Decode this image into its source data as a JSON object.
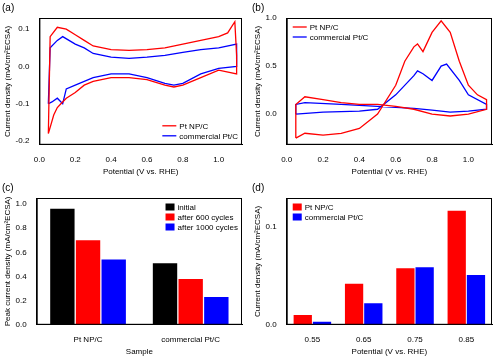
{
  "chart_data": [
    {
      "type": "line",
      "title": "(a)",
      "x_label": "Potential (V vs. RHE)",
      "y_label": "Current density (mA/cm²ECSA)",
      "xlim": [
        0,
        1.13
      ],
      "xticks": [
        {
          "value": 0,
          "label": "0.0"
        },
        0.2,
        0.4,
        0.6,
        0.8,
        {
          "value": 1,
          "label": "1.0"
        }
      ],
      "ylim": [
        -0.21,
        0.13
      ],
      "yticks": [
        -0.2,
        -0.1,
        {
          "value": 0,
          "label": "0.0"
        },
        0.1
      ],
      "grid": false,
      "legend": "lower right",
      "series": [
        {
          "name": "Pt NP/C",
          "color": "#ff0000",
          "x": [
            0.05,
            0.06,
            0.1,
            0.15,
            0.2,
            0.25,
            0.3,
            0.4,
            0.5,
            0.6,
            0.7,
            0.8,
            0.9,
            1.0,
            1.05,
            1.09,
            1.1,
            1.1,
            1.0,
            0.9,
            0.8,
            0.75,
            0.7,
            0.6,
            0.5,
            0.4,
            0.3,
            0.25,
            0.2,
            0.15,
            0.12,
            0.1,
            0.08,
            0.05
          ],
          "values": [
            -0.18,
            0.08,
            0.105,
            0.1,
            0.085,
            0.07,
            0.055,
            0.045,
            0.043,
            0.045,
            0.05,
            0.06,
            0.07,
            0.08,
            0.09,
            0.12,
            0.03,
            -0.02,
            -0.01,
            -0.03,
            -0.05,
            -0.055,
            -0.05,
            -0.035,
            -0.03,
            -0.03,
            -0.04,
            -0.05,
            -0.07,
            -0.085,
            -0.1,
            -0.11,
            -0.13,
            -0.18
          ]
        },
        {
          "name": "commercial Pt/C",
          "color": "#0000ff",
          "x": [
            0.05,
            0.06,
            0.1,
            0.13,
            0.2,
            0.25,
            0.3,
            0.4,
            0.5,
            0.6,
            0.7,
            0.8,
            0.9,
            1.0,
            1.1,
            1.1,
            1.0,
            0.9,
            0.8,
            0.75,
            0.7,
            0.6,
            0.5,
            0.4,
            0.3,
            0.2,
            0.15,
            0.13,
            0.1,
            0.07,
            0.05
          ],
          "values": [
            -0.1,
            0.05,
            0.07,
            0.08,
            0.06,
            0.05,
            0.035,
            0.025,
            0.022,
            0.025,
            0.03,
            0.038,
            0.045,
            0.05,
            0.06,
            0.0,
            -0.005,
            -0.02,
            -0.045,
            -0.05,
            -0.045,
            -0.03,
            -0.02,
            -0.02,
            -0.03,
            -0.05,
            -0.06,
            -0.1,
            -0.085,
            -0.095,
            -0.1
          ]
        }
      ]
    },
    {
      "type": "line",
      "title": "(b)",
      "x_label": "Potential (V vs. RHE)",
      "y_label": "Current density (mA/cm²ECSA)",
      "xlim": [
        0,
        1.13
      ],
      "xticks": [
        {
          "value": 0,
          "label": "0.0"
        },
        0.2,
        0.4,
        0.6,
        0.8,
        {
          "value": 1,
          "label": "1.0"
        }
      ],
      "ylim": [
        -0.32,
        1.0
      ],
      "yticks": [
        {
          "value": 0,
          "label": "0.0"
        },
        0.5,
        {
          "value": 1,
          "label": "1.0"
        }
      ],
      "grid": false,
      "legend": "upper left",
      "series": [
        {
          "name": "Pt NP/C",
          "color": "#ff0000",
          "x": [
            0.05,
            0.1,
            0.2,
            0.3,
            0.4,
            0.5,
            0.6,
            0.65,
            0.7,
            0.72,
            0.75,
            0.8,
            0.85,
            0.9,
            0.95,
            1.0,
            1.05,
            1.1,
            1.1,
            1.0,
            0.9,
            0.8,
            0.7,
            0.6,
            0.5,
            0.4,
            0.3,
            0.2,
            0.1,
            0.05,
            0.05
          ],
          "values": [
            -0.25,
            -0.2,
            -0.22,
            -0.2,
            -0.15,
            0.0,
            0.3,
            0.55,
            0.7,
            0.73,
            0.65,
            0.85,
            0.97,
            0.85,
            0.55,
            0.3,
            0.2,
            0.15,
            0.05,
            0.0,
            -0.02,
            0.0,
            0.05,
            0.08,
            0.1,
            0.1,
            0.12,
            0.15,
            0.18,
            0.1,
            -0.25
          ]
        },
        {
          "name": "commercial Pt/C",
          "color": "#0000ff",
          "x": [
            0.05,
            0.2,
            0.4,
            0.5,
            0.6,
            0.7,
            0.72,
            0.75,
            0.8,
            0.85,
            0.88,
            0.95,
            1.0,
            1.1,
            1.1,
            1.0,
            0.9,
            0.8,
            0.7,
            0.5,
            0.3,
            0.1,
            0.05,
            0.05
          ],
          "values": [
            0.0,
            0.02,
            0.03,
            0.05,
            0.2,
            0.4,
            0.45,
            0.42,
            0.35,
            0.5,
            0.52,
            0.35,
            0.2,
            0.1,
            0.05,
            0.03,
            0.02,
            0.04,
            0.06,
            0.08,
            0.1,
            0.12,
            0.1,
            0.0
          ]
        }
      ]
    },
    {
      "type": "bar",
      "title": "(c)",
      "x_label": "Sample",
      "y_label": "Peak current density (mA/cm²ECSA)",
      "categories": [
        "Pt NP/C",
        "commercial Pt/C"
      ],
      "ylim": [
        0,
        1.05
      ],
      "yticks": [
        {
          "value": 0,
          "label": "0.0"
        },
        0.2,
        0.4,
        0.6,
        0.8,
        {
          "value": 1,
          "label": "1.0"
        }
      ],
      "grid": false,
      "legend": "upper right",
      "series": [
        {
          "name": "initial",
          "color": "#000000",
          "values": [
            0.96,
            0.51
          ]
        },
        {
          "name": "after 600 cycles",
          "color": "#ff0000",
          "values": [
            0.7,
            0.38
          ]
        },
        {
          "name": "after 1000 cycles",
          "color": "#0000ff",
          "values": [
            0.54,
            0.23
          ]
        }
      ]
    },
    {
      "type": "bar",
      "title": "(d)",
      "x_label": "Potential (V vs. RHE)",
      "y_label": "Current density (mA/cm²ECSA)",
      "categories": [
        "0.55",
        "0.65",
        "0.75",
        "0.85"
      ],
      "ylim": [
        0,
        0.13
      ],
      "yticks": [
        {
          "value": 0,
          "label": "0.0"
        },
        0.1
      ],
      "grid": false,
      "legend": "upper left",
      "series": [
        {
          "name": "Pt NP/C",
          "color": "#ff0000",
          "values": [
            0.01,
            0.042,
            0.058,
            0.117
          ]
        },
        {
          "name": "commercial Pt/C",
          "color": "#0000ff",
          "values": [
            0.003,
            0.022,
            0.059,
            0.051
          ]
        }
      ]
    }
  ]
}
